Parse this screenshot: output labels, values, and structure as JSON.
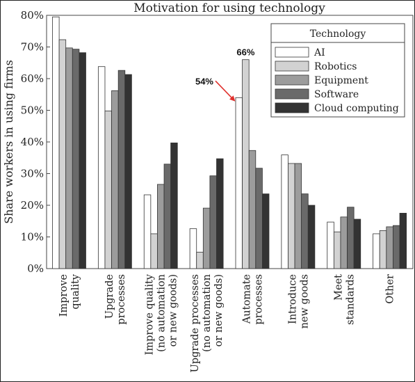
{
  "chart_data": {
    "type": "bar",
    "title": "Motivation for using technology",
    "ylabel": "Share workers in using firms",
    "ylim": [
      0,
      80
    ],
    "yticks": [
      "0%",
      "10%",
      "20%",
      "30%",
      "40%",
      "50%",
      "60%",
      "70%",
      "80%"
    ],
    "categories": [
      [
        "Improve",
        "quality"
      ],
      [
        "Upgrade",
        "processes"
      ],
      [
        "Improve quality",
        "(no automation",
        "or new goods)"
      ],
      [
        "Upgrade processes",
        "(no automation",
        "or new goods)"
      ],
      [
        "Automate",
        "processes"
      ],
      [
        "Introduce",
        "new goods"
      ],
      [
        "Meet",
        "standards"
      ],
      [
        "Other"
      ]
    ],
    "legend": {
      "title": "Technology",
      "placement": "top-right"
    },
    "series": [
      {
        "name": "AI",
        "color": "#ffffff",
        "values": [
          79.5,
          63.8,
          23.3,
          12.6,
          54.0,
          35.9,
          14.7,
          11.0
        ]
      },
      {
        "name": "Robotics",
        "color": "#d2d2d2",
        "values": [
          72.3,
          49.8,
          11.0,
          5.2,
          66.0,
          33.2,
          11.6,
          12.0
        ]
      },
      {
        "name": "Equipment",
        "color": "#9c9c9c",
        "values": [
          69.7,
          56.2,
          26.6,
          19.1,
          37.3,
          33.2,
          16.3,
          13.2
        ]
      },
      {
        "name": "Software",
        "color": "#6a6a6a",
        "values": [
          69.3,
          62.6,
          33.0,
          29.3,
          31.7,
          23.6,
          19.4,
          13.6
        ]
      },
      {
        "name": "Cloud computing",
        "color": "#333333",
        "values": [
          68.2,
          61.3,
          39.7,
          34.7,
          23.6,
          20.0,
          15.6,
          17.5
        ]
      }
    ],
    "annotations": [
      {
        "text": "66%",
        "series": "Robotics",
        "category": 4
      },
      {
        "text": "54%",
        "series": "AI",
        "category": 4,
        "arrow": true,
        "arrow_color": "#e0302c"
      }
    ]
  }
}
